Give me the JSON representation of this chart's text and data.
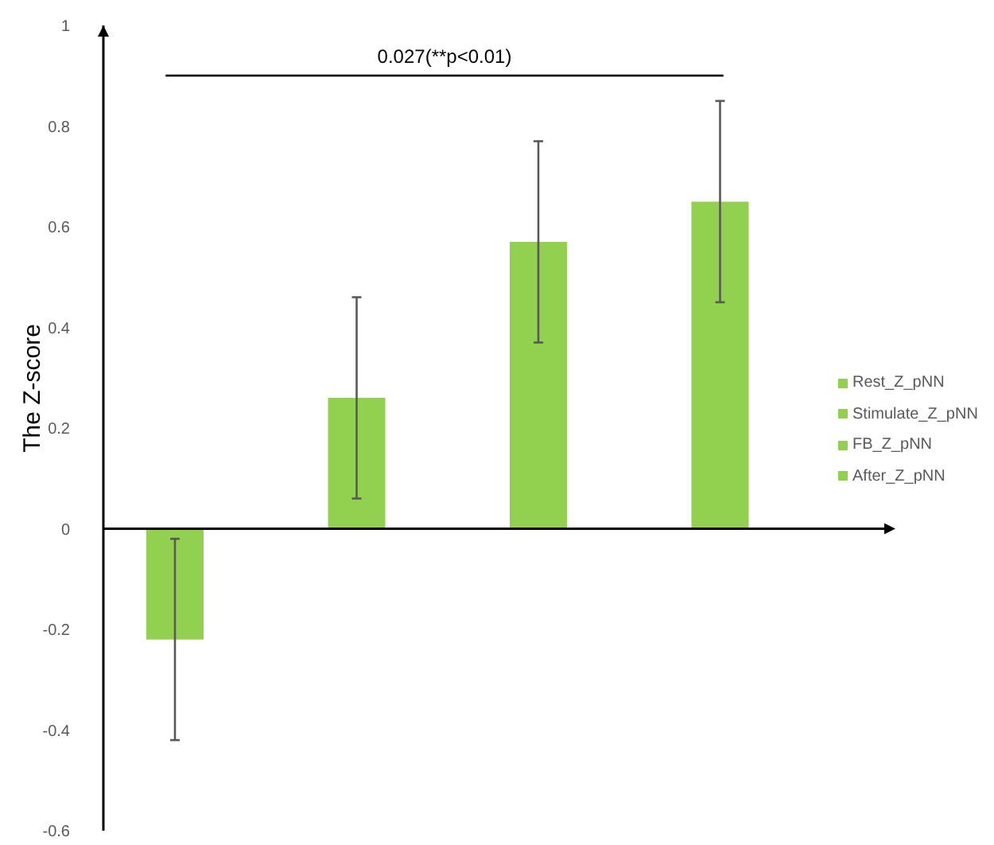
{
  "chart_data": {
    "type": "bar",
    "ylabel": "The Z-score",
    "annotations": [
      "0.027(**p<0.01)"
    ],
    "categories": [
      null,
      null,
      null,
      null
    ],
    "series": [
      {
        "name": "Rest_Z_pNN",
        "color": "#92d050",
        "values": [
          -0.22,
          null,
          null,
          null
        ],
        "errors": [
          0.2,
          null,
          null,
          null
        ]
      },
      {
        "name": "Stimulate_Z_pNN",
        "color": "#92d050",
        "values": [
          null,
          0.26,
          null,
          null
        ],
        "errors": [
          null,
          0.2,
          null,
          null
        ]
      },
      {
        "name": "FB_Z_pNN",
        "color": "#92d050",
        "values": [
          null,
          null,
          0.57,
          null
        ],
        "errors": [
          null,
          null,
          0.2,
          null
        ]
      },
      {
        "name": "After_Z_pNN",
        "color": "#92d050",
        "values": [
          null,
          null,
          null,
          0.65
        ],
        "errors": [
          null,
          null,
          null,
          0.2
        ]
      }
    ],
    "ylim": [
      -0.6,
      1
    ],
    "yticks": [
      -0.6,
      -0.4,
      -0.2,
      0,
      0.2,
      0.4,
      0.6,
      0.8,
      1
    ],
    "legend": "right",
    "tick_labels": "y"
  }
}
